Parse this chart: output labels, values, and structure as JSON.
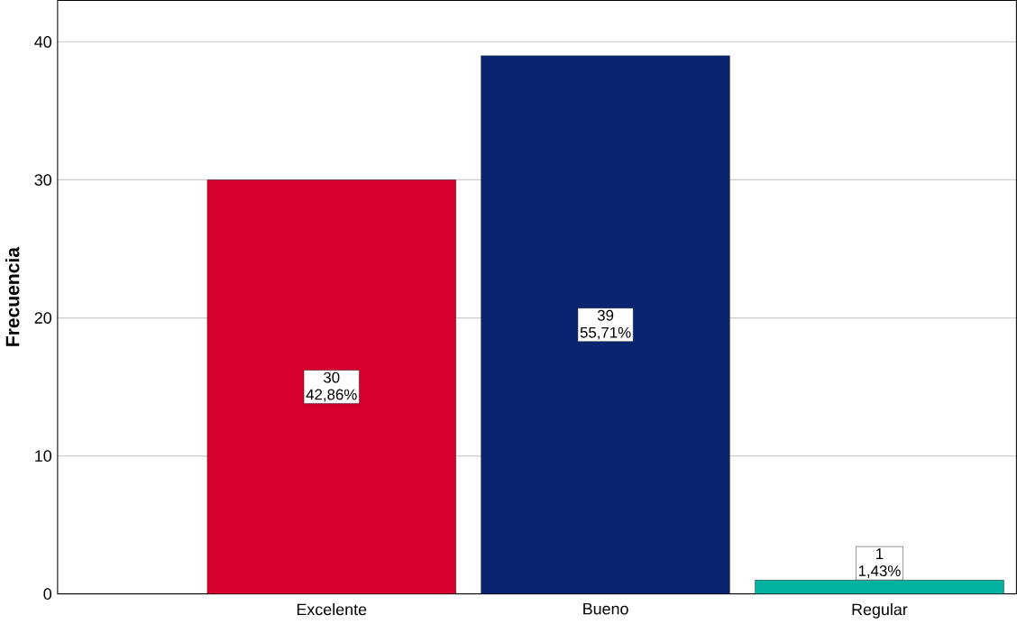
{
  "chart_data": {
    "type": "bar",
    "ylabel": "Frecuencia",
    "categories": [
      "Excelente",
      "Bueno",
      "Regular"
    ],
    "values": [
      30,
      39,
      1
    ],
    "colors": [
      "#d6002f",
      "#0a2570",
      "#00b3a0"
    ],
    "data_labels": true,
    "annotations": [
      "42,86%",
      "55,71%",
      "1,43%"
    ],
    "ylim": [
      0,
      43
    ],
    "yticks": [
      0,
      10,
      20,
      30,
      40
    ],
    "grid": "y"
  }
}
